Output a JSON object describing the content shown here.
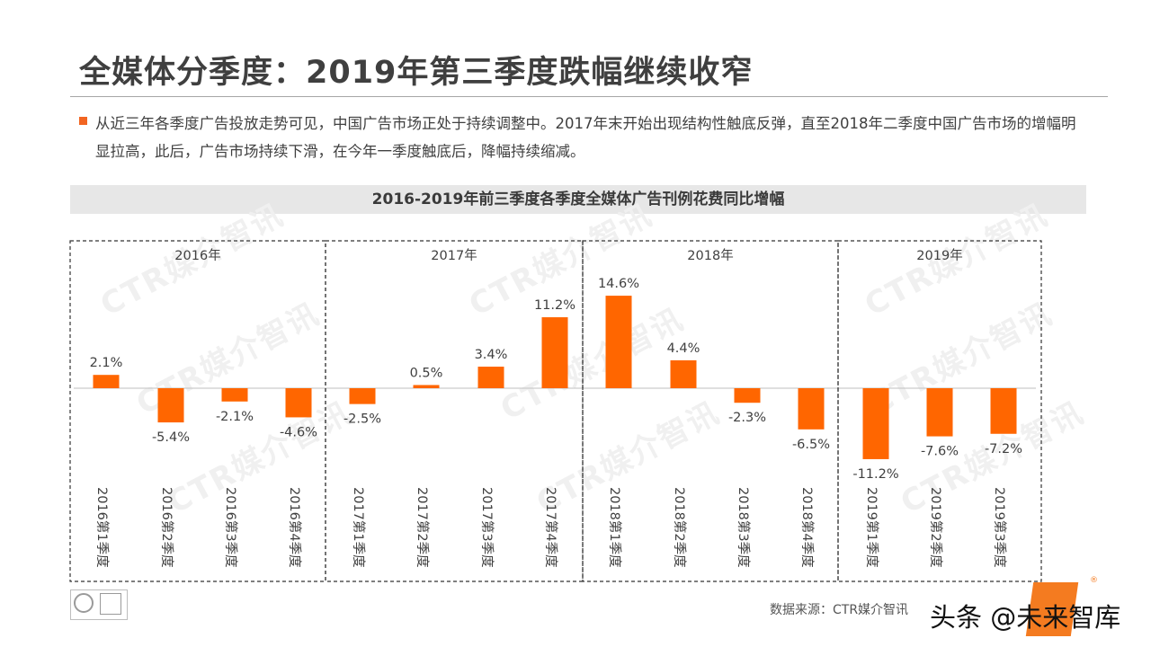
{
  "page": {
    "title": "全媒体分季度：2019年第三季度跌幅继续收窄",
    "intro": "从近三年各季度广告投放走势可见，中国广告市场正处于持续调整中。2017年末开始出现结构性触底反弹，直至2018年二季度中国广告市场的增幅明显拉高，此后，广告市场持续下滑，在今年一季度触底后，降幅持续缩减。",
    "source": "数据来源：CTR媒介智讯",
    "brand": "头条 @未来智库",
    "watermark": "CTR媒介智讯"
  },
  "chart_data": {
    "type": "bar",
    "title": "2016-2019年前三季度各季度全媒体广告刊例花费同比增幅",
    "groups": [
      {
        "label": "2016年",
        "categories": [
          "2016第1季度",
          "2016第2季度",
          "2016第3季度",
          "2016第4季度"
        ],
        "values": [
          2.1,
          -5.4,
          -2.1,
          -4.6
        ]
      },
      {
        "label": "2017年",
        "categories": [
          "2017第1季度",
          "2017第2季度",
          "2017第3季度",
          "2017第4季度"
        ],
        "values": [
          -2.5,
          0.5,
          3.4,
          11.2
        ]
      },
      {
        "label": "2018年",
        "categories": [
          "2018第1季度",
          "2018第2季度",
          "2018第3季度",
          "2018第4季度"
        ],
        "values": [
          14.6,
          4.4,
          -2.3,
          -6.5
        ]
      },
      {
        "label": "2019年",
        "categories": [
          "2019第1季度",
          "2019第2季度",
          "2019第3季度"
        ],
        "values": [
          -11.2,
          -7.6,
          -7.2
        ]
      }
    ],
    "value_suffix": "%",
    "bar_color": "#ff6600",
    "ylim": [
      -12,
      15
    ]
  }
}
